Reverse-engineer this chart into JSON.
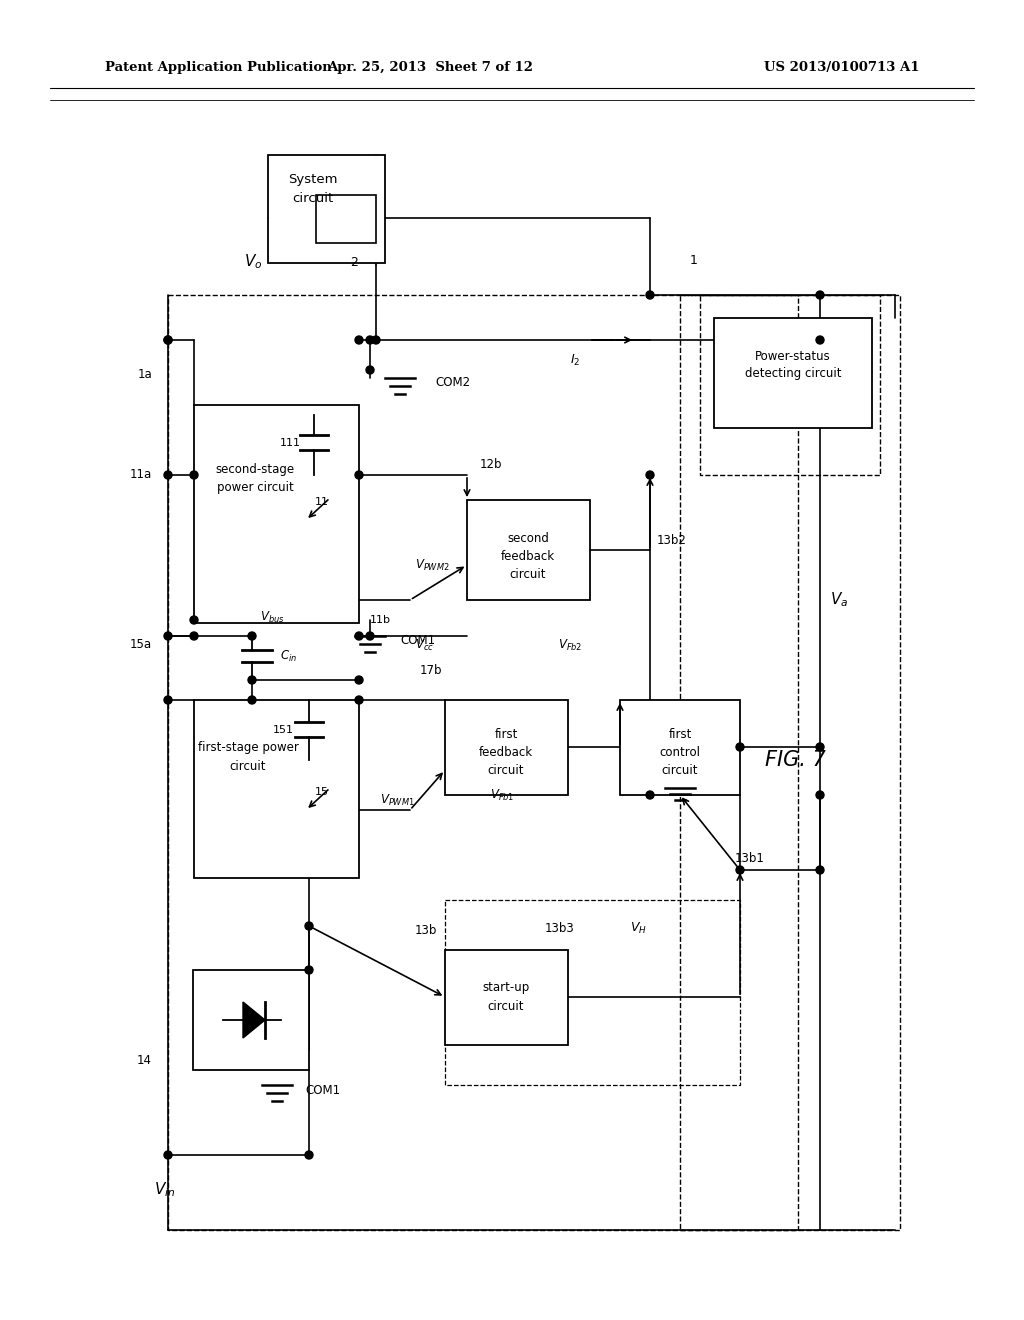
{
  "title_left": "Patent Application Publication",
  "title_center": "Apr. 25, 2013  Sheet 7 of 12",
  "title_right": "US 2013/0100713 A1",
  "fig_label": "FIG. 7",
  "background": "#ffffff"
}
